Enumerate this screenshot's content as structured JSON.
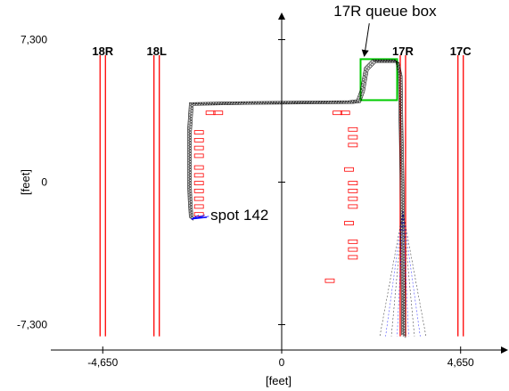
{
  "chart_data": {
    "type": "scatter",
    "title": "",
    "xlabel": "[feet]",
    "ylabel": "[feet]",
    "xlim": [
      -6000,
      6000
    ],
    "ylim": [
      -8600,
      8600
    ],
    "x_ticks": [
      {
        "value": -4650,
        "label": "-4,650"
      },
      {
        "value": 0,
        "label": "0"
      },
      {
        "value": 4650,
        "label": "4,650"
      }
    ],
    "y_ticks": [
      {
        "value": 7300,
        "label": "7,300"
      },
      {
        "value": 0,
        "label": "0"
      },
      {
        "value": -7300,
        "label": "-7,300"
      }
    ],
    "grid": false,
    "colors": {
      "runway": "#ff0000",
      "taxi_track": "#000000",
      "spot_track": "#0000ff",
      "queue_box": "#00cc00",
      "marker": "#ff0000"
    },
    "runways": [
      {
        "name": "18R",
        "x": -4650,
        "y_top": 6500,
        "y_bottom": -7900
      },
      {
        "name": "18L",
        "x": -3250,
        "y_top": 6500,
        "y_bottom": -7900
      },
      {
        "name": "17R",
        "x": 3150,
        "y_top": 6500,
        "y_bottom": -7900
      },
      {
        "name": "17C",
        "x": 4650,
        "y_top": 6500,
        "y_bottom": -7900
      }
    ],
    "queue_box": {
      "x0": 2050,
      "x1": 3000,
      "y0": 4200,
      "y1": 6300
    },
    "track_path": [
      [
        -2350,
        -1900
      ],
      [
        -2380,
        -1000
      ],
      [
        -2400,
        0
      ],
      [
        -2400,
        2500
      ],
      [
        -2350,
        4000
      ],
      [
        -1000,
        4050
      ],
      [
        500,
        4080
      ],
      [
        1800,
        4100
      ],
      [
        2000,
        4150
      ],
      [
        2100,
        4700
      ],
      [
        2200,
        5800
      ],
      [
        2400,
        6200
      ],
      [
        3000,
        6200
      ],
      [
        3080,
        5500
      ],
      [
        3100,
        3000
      ],
      [
        3130,
        0
      ],
      [
        3150,
        -4000
      ],
      [
        3170,
        -7900
      ]
    ],
    "markers": [
      [
        -1850,
        3550
      ],
      [
        -1650,
        3550
      ],
      [
        1450,
        3550
      ],
      [
        1650,
        3550
      ],
      [
        -2150,
        2550
      ],
      [
        -2150,
        2150
      ],
      [
        -2150,
        1750
      ],
      [
        -2150,
        1350
      ],
      [
        -2150,
        750
      ],
      [
        -2150,
        350
      ],
      [
        -2150,
        -50
      ],
      [
        -2150,
        -450
      ],
      [
        -2150,
        -850
      ],
      [
        -2150,
        -1250
      ],
      [
        -2150,
        -1650
      ],
      [
        1850,
        2700
      ],
      [
        1850,
        2300
      ],
      [
        1850,
        1900
      ],
      [
        1750,
        650
      ],
      [
        1850,
        -50
      ],
      [
        1850,
        -450
      ],
      [
        1850,
        -850
      ],
      [
        1850,
        -1250
      ],
      [
        1750,
        -2100
      ],
      [
        1850,
        -3050
      ],
      [
        1850,
        -3450
      ],
      [
        1850,
        -3850
      ],
      [
        1250,
        -5050
      ]
    ],
    "annotations": [
      {
        "text": "17R queue box",
        "x": 1350,
        "y": 8500,
        "arrow_to": [
          2150,
          6500
        ]
      },
      {
        "text": "spot 142",
        "x": -1850,
        "y": -1950
      }
    ]
  }
}
